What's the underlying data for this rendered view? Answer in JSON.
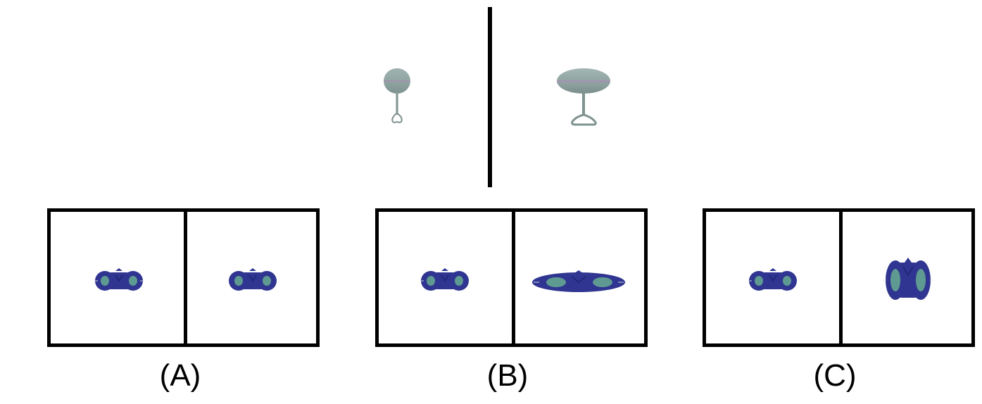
{
  "options": [
    {
      "label": "(A)"
    },
    {
      "label": "(B)"
    },
    {
      "label": "(C)"
    }
  ],
  "colors": {
    "shape_blue": "#2f3590",
    "shape_blue_dark": "#23287a",
    "shape_green": "#5f9a92",
    "reference_gray": "#8fa3a3",
    "reference_pink": "#a08aa8",
    "frame": "#000000"
  }
}
